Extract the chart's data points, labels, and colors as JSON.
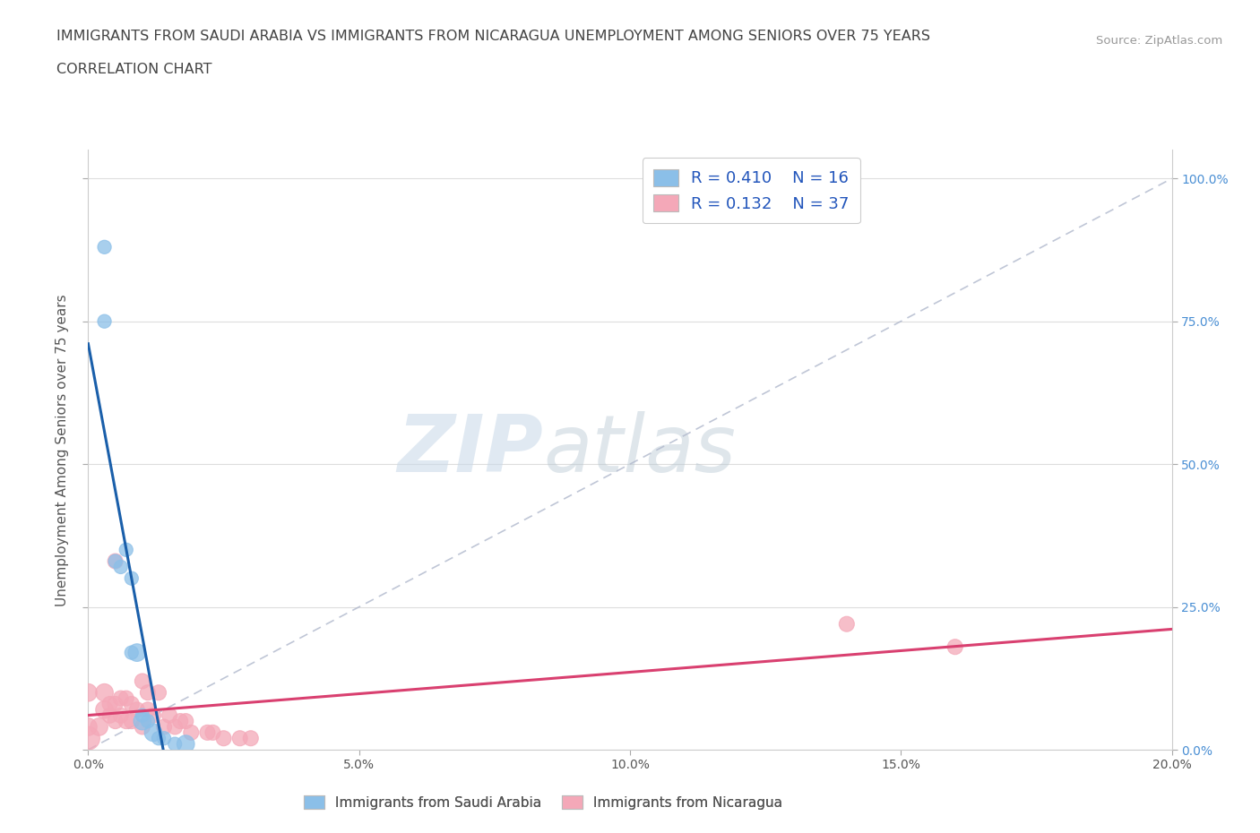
{
  "title_line1": "IMMIGRANTS FROM SAUDI ARABIA VS IMMIGRANTS FROM NICARAGUA UNEMPLOYMENT AMONG SENIORS OVER 75 YEARS",
  "title_line2": "CORRELATION CHART",
  "source": "Source: ZipAtlas.com",
  "ylabel": "Unemployment Among Seniors over 75 years",
  "xlim": [
    0.0,
    0.2
  ],
  "ylim": [
    0.0,
    1.05
  ],
  "ytick_vals": [
    0.0,
    0.25,
    0.5,
    0.75,
    1.0
  ],
  "xtick_vals": [
    0.0,
    0.05,
    0.1,
    0.15,
    0.2
  ],
  "legend_label1": "Immigrants from Saudi Arabia",
  "legend_label2": "Immigrants from Nicaragua",
  "R1": 0.41,
  "N1": 16,
  "R2": 0.132,
  "N2": 37,
  "color1": "#8bbfe8",
  "color2": "#f4a8b8",
  "regression_color1": "#1a5faa",
  "regression_color2": "#d94070",
  "diag_color": "#b0b8cc",
  "watermark_zip": "ZIP",
  "watermark_atlas": "atlas",
  "saudi_x": [
    0.003,
    0.003,
    0.005,
    0.006,
    0.007,
    0.008,
    0.008,
    0.009,
    0.01,
    0.01,
    0.011,
    0.012,
    0.013,
    0.014,
    0.016,
    0.018
  ],
  "saudi_y": [
    0.88,
    0.75,
    0.33,
    0.32,
    0.35,
    0.3,
    0.17,
    0.17,
    0.06,
    0.05,
    0.05,
    0.03,
    0.02,
    0.02,
    0.01,
    0.01
  ],
  "saudi_size": [
    120,
    120,
    120,
    120,
    120,
    120,
    120,
    200,
    120,
    200,
    120,
    200,
    120,
    120,
    120,
    200
  ],
  "nicaragua_x": [
    0.0,
    0.0,
    0.0,
    0.002,
    0.003,
    0.003,
    0.004,
    0.004,
    0.005,
    0.005,
    0.005,
    0.006,
    0.006,
    0.007,
    0.007,
    0.008,
    0.008,
    0.009,
    0.01,
    0.01,
    0.011,
    0.011,
    0.012,
    0.013,
    0.014,
    0.015,
    0.016,
    0.017,
    0.018,
    0.019,
    0.022,
    0.023,
    0.025,
    0.028,
    0.03,
    0.14,
    0.16
  ],
  "nicaragua_y": [
    0.02,
    0.04,
    0.1,
    0.04,
    0.07,
    0.1,
    0.06,
    0.08,
    0.05,
    0.08,
    0.33,
    0.06,
    0.09,
    0.05,
    0.09,
    0.05,
    0.08,
    0.07,
    0.04,
    0.12,
    0.07,
    0.1,
    0.06,
    0.1,
    0.04,
    0.06,
    0.04,
    0.05,
    0.05,
    0.03,
    0.03,
    0.03,
    0.02,
    0.02,
    0.02,
    0.22,
    0.18
  ],
  "nicaragua_size": [
    350,
    200,
    200,
    200,
    200,
    200,
    150,
    150,
    150,
    150,
    150,
    150,
    150,
    150,
    150,
    150,
    150,
    150,
    150,
    150,
    150,
    150,
    150,
    150,
    150,
    150,
    150,
    150,
    150,
    150,
    150,
    150,
    150,
    150,
    150,
    150,
    150
  ]
}
